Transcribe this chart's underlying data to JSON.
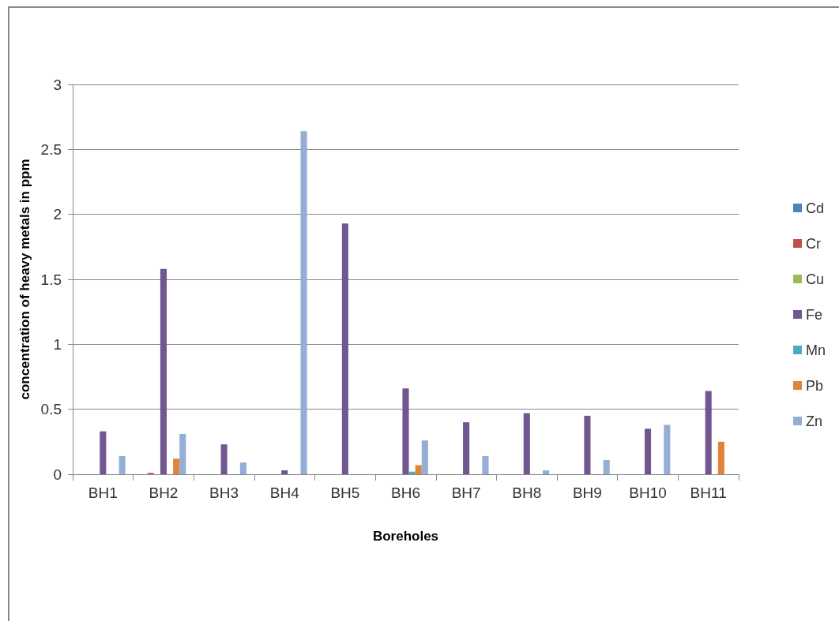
{
  "chart_data": {
    "type": "bar",
    "xlabel": "Boreholes",
    "ylabel": "concentration of heavy metals in ppm",
    "categories": [
      "BH1",
      "BH2",
      "BH3",
      "BH4",
      "BH5",
      "BH6",
      "BH7",
      "BH8",
      "BH9",
      "BH10",
      "BH11"
    ],
    "series": [
      {
        "name": "Cd",
        "color": "#4f81bd",
        "values": [
          0,
          0,
          0,
          0,
          0,
          0,
          0,
          0,
          0,
          0,
          0
        ]
      },
      {
        "name": "Cr",
        "color": "#c0504d",
        "values": [
          0,
          0.01,
          0,
          0,
          0,
          0,
          0,
          0,
          0,
          0,
          0
        ]
      },
      {
        "name": "Cu",
        "color": "#9bbb59",
        "values": [
          0,
          0,
          0,
          0,
          0,
          0,
          0,
          0,
          0,
          0,
          0
        ]
      },
      {
        "name": "Fe",
        "color": "#71578f",
        "values": [
          0.33,
          1.58,
          0.23,
          0.03,
          1.93,
          0.66,
          0.4,
          0.47,
          0.45,
          0.35,
          0.64
        ]
      },
      {
        "name": "Mn",
        "color": "#4bacc6",
        "values": [
          0,
          0,
          0,
          0,
          0,
          0.02,
          0,
          0,
          0,
          0,
          0
        ]
      },
      {
        "name": "Pb",
        "color": "#df843b",
        "values": [
          0,
          0.12,
          0,
          0,
          0,
          0.07,
          0,
          0,
          0,
          0,
          0.25
        ]
      },
      {
        "name": "Zn",
        "color": "#95aed5",
        "values": [
          0.14,
          0.31,
          0.09,
          2.64,
          0,
          0.26,
          0.14,
          0.03,
          0.11,
          0.38,
          0
        ]
      }
    ],
    "ylim": [
      0,
      3
    ],
    "yticks": [
      0,
      0.5,
      1,
      1.5,
      2,
      2.5,
      3
    ],
    "grid": "y",
    "legend": "right"
  }
}
